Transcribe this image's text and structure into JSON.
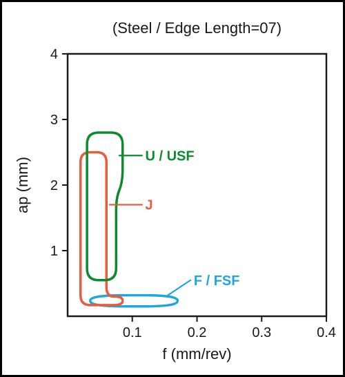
{
  "title": "(Steel / Edge Length=07)",
  "xlabel": "f (mm/rev)",
  "ylabel": "ap (mm)",
  "title_fontsize": 22,
  "label_fontsize": 22,
  "tick_fontsize": 20,
  "series_label_fontsize": 20,
  "background_color": "#ffffff",
  "axis_color": "#1a1a1a",
  "tick_length": 8,
  "axis": {
    "x": {
      "min": 0.0,
      "max": 0.4,
      "ticks": [
        0.1,
        0.2,
        0.3,
        0.4
      ],
      "tick_labels": [
        "0.1",
        "0.2",
        "0.3",
        "0.4"
      ]
    },
    "y": {
      "min": 0.0,
      "max": 4.0,
      "ticks": [
        1,
        2,
        3,
        4
      ],
      "tick_labels": [
        "1",
        "2",
        "3",
        "4"
      ]
    }
  },
  "series": [
    {
      "id": "U_USF",
      "label": "U / USF",
      "color": "#0d8a2f",
      "line_width": 3.5,
      "corner_radius": 0.12,
      "leader": {
        "from": [
          0.115,
          2.45
        ],
        "to": [
          0.08,
          2.45
        ]
      },
      "label_pos": [
        0.12,
        2.45
      ],
      "polygon": [
        [
          0.03,
          2.8
        ],
        [
          0.085,
          2.8
        ],
        [
          0.085,
          2.05
        ],
        [
          0.075,
          1.8
        ],
        [
          0.075,
          0.55
        ],
        [
          0.03,
          0.55
        ]
      ]
    },
    {
      "id": "J",
      "label": "J",
      "color": "#e85c3a",
      "line_width": 3.5,
      "corner_radius": 0.1,
      "leader": {
        "from": [
          0.115,
          1.7
        ],
        "to": [
          0.065,
          1.7
        ]
      },
      "label_pos": [
        0.12,
        1.7
      ],
      "polygon": [
        [
          0.02,
          2.5
        ],
        [
          0.06,
          2.5
        ],
        [
          0.06,
          0.3
        ],
        [
          0.085,
          0.3
        ],
        [
          0.085,
          0.17
        ],
        [
          0.02,
          0.17
        ]
      ]
    },
    {
      "id": "F_FSF",
      "label": "F / FSF",
      "color": "#1ea6e0",
      "line_width": 3.5,
      "corner_radius": 0.35,
      "leader": {
        "from": [
          0.19,
          0.55
        ],
        "to": [
          0.155,
          0.32
        ]
      },
      "label_pos": [
        0.195,
        0.55
      ],
      "polygon": [
        [
          0.035,
          0.32
        ],
        [
          0.17,
          0.32
        ],
        [
          0.17,
          0.15
        ],
        [
          0.035,
          0.15
        ]
      ]
    }
  ]
}
